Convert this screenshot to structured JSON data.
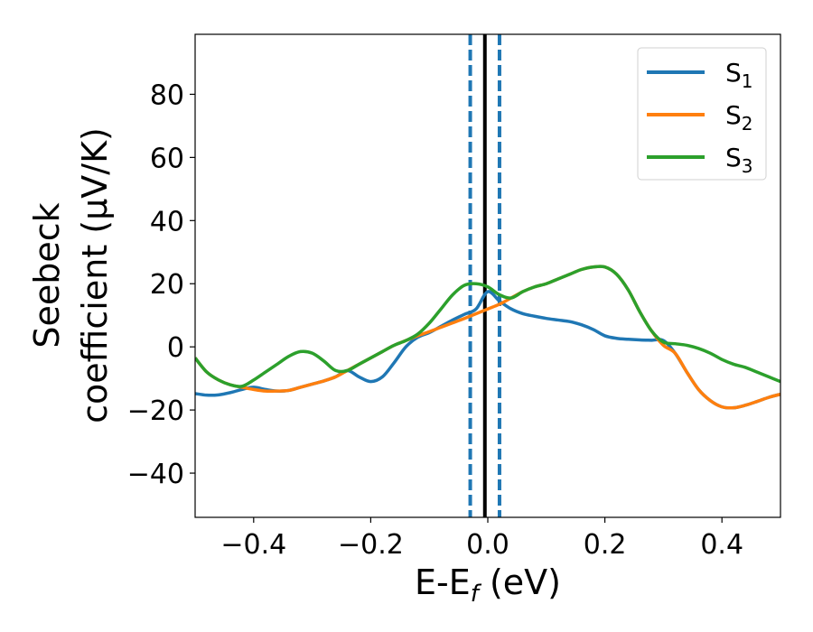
{
  "chart_data": {
    "type": "line",
    "xlabel": "E-E_f (eV)",
    "xlabel_parts": {
      "base": "E-E",
      "sub": "f",
      "rest": " (eV)"
    },
    "ylabel_lines": [
      "Seebeck",
      "coefficient  (μV/K)"
    ],
    "xlim": [
      -0.5,
      0.5
    ],
    "ylim": [
      -54,
      99
    ],
    "xticks": [
      -0.4,
      -0.2,
      0.0,
      0.2,
      0.4
    ],
    "xtick_labels": [
      "−0.4",
      "−0.2",
      "0.0",
      "0.2",
      "0.4"
    ],
    "yticks": [
      -40,
      -20,
      0,
      20,
      40,
      60,
      80
    ],
    "ytick_labels": [
      "−40",
      "−20",
      "0",
      "20",
      "40",
      "60",
      "80"
    ],
    "grid": false,
    "legend_position": "top-right",
    "vlines": [
      {
        "x": -0.03,
        "style": "dashed",
        "color": "#1f77b4"
      },
      {
        "x": 0.02,
        "style": "dashed",
        "color": "#1f77b4"
      },
      {
        "x": -0.005,
        "style": "solid",
        "color": "#000000"
      }
    ],
    "series": [
      {
        "name": "S",
        "sub": "1",
        "color": "#1f77b4",
        "x": [
          -0.5,
          -0.48,
          -0.46,
          -0.44,
          -0.42,
          -0.4,
          -0.38,
          -0.36,
          -0.34,
          -0.32,
          -0.3,
          -0.28,
          -0.26,
          -0.24,
          -0.22,
          -0.2,
          -0.18,
          -0.16,
          -0.14,
          -0.12,
          -0.1,
          -0.08,
          -0.06,
          -0.04,
          -0.02,
          0.0,
          0.02,
          0.04,
          0.06,
          0.08,
          0.1,
          0.12,
          0.14,
          0.16,
          0.18,
          0.2,
          0.22,
          0.24,
          0.26,
          0.28,
          0.3,
          0.32,
          0.34,
          0.36,
          0.38,
          0.4,
          0.42,
          0.44,
          0.46,
          0.48,
          0.5
        ],
        "y": [
          -14.8,
          -15.3,
          -15.2,
          -14.5,
          -13.5,
          -12.8,
          -13.5,
          -14.0,
          -13.8,
          -12.8,
          -11.8,
          -10.8,
          -9.5,
          -7.5,
          -9.5,
          -11.0,
          -9.5,
          -5.0,
          0.0,
          3.0,
          4.5,
          6.5,
          8.5,
          10.3,
          12.0,
          17.5,
          14.5,
          12.0,
          10.5,
          9.7,
          9.0,
          8.5,
          8.0,
          7.0,
          5.5,
          3.5,
          2.7,
          2.4,
          2.2,
          2.1,
          2.0,
          -2.0,
          -8.0,
          -13.5,
          -17.0,
          -19.0,
          -19.3,
          -18.5,
          -17.3,
          -16.0,
          -15.0
        ]
      },
      {
        "name": "S",
        "sub": "2",
        "color": "#ff7f0e",
        "x": [
          -0.5,
          -0.48,
          -0.46,
          -0.44,
          -0.42,
          -0.4,
          -0.38,
          -0.36,
          -0.34,
          -0.32,
          -0.3,
          -0.28,
          -0.26,
          -0.24,
          -0.22,
          -0.2,
          -0.18,
          -0.16,
          -0.14,
          -0.12,
          -0.1,
          -0.08,
          -0.06,
          -0.04,
          -0.02,
          0.0,
          0.02,
          0.04,
          0.06,
          0.08,
          0.1,
          0.12,
          0.14,
          0.16,
          0.18,
          0.2,
          0.22,
          0.24,
          0.26,
          0.28,
          0.3,
          0.32,
          0.34,
          0.36,
          0.38,
          0.4,
          0.42,
          0.44,
          0.46,
          0.48,
          0.5
        ],
        "y": [
          -3.5,
          -8.0,
          -10.5,
          -12.0,
          -12.8,
          -13.5,
          -14.0,
          -14.0,
          -13.8,
          -12.8,
          -11.8,
          -10.8,
          -9.5,
          -7.5,
          -5.5,
          -3.5,
          -1.5,
          0.5,
          2.0,
          3.5,
          4.8,
          6.2,
          7.6,
          9.0,
          10.5,
          12.0,
          13.5,
          15.5,
          17.5,
          19.0,
          20.0,
          21.5,
          23.0,
          24.5,
          25.3,
          25.3,
          23.0,
          18.0,
          11.0,
          5.0,
          0.5,
          -2.0,
          -8.0,
          -13.5,
          -17.0,
          -19.0,
          -19.3,
          -18.5,
          -17.3,
          -16.0,
          -15.0
        ]
      },
      {
        "name": "S",
        "sub": "3",
        "color": "#2ca02c",
        "x": [
          -0.5,
          -0.48,
          -0.46,
          -0.44,
          -0.42,
          -0.4,
          -0.38,
          -0.36,
          -0.34,
          -0.32,
          -0.3,
          -0.28,
          -0.26,
          -0.24,
          -0.22,
          -0.2,
          -0.18,
          -0.16,
          -0.14,
          -0.12,
          -0.1,
          -0.08,
          -0.06,
          -0.04,
          -0.02,
          0.0,
          0.02,
          0.04,
          0.06,
          0.08,
          0.1,
          0.12,
          0.14,
          0.16,
          0.18,
          0.2,
          0.22,
          0.24,
          0.26,
          0.28,
          0.3,
          0.32,
          0.34,
          0.36,
          0.38,
          0.4,
          0.42,
          0.44,
          0.46,
          0.48,
          0.5
        ],
        "y": [
          -3.5,
          -8.0,
          -10.5,
          -12.0,
          -12.5,
          -10.5,
          -8.0,
          -5.5,
          -3.0,
          -1.5,
          -2.0,
          -4.5,
          -7.5,
          -7.5,
          -5.5,
          -3.5,
          -1.5,
          0.5,
          2.0,
          4.0,
          7.5,
          12.0,
          16.5,
          19.5,
          20.0,
          19.0,
          16.5,
          15.5,
          17.5,
          19.0,
          20.0,
          21.5,
          23.0,
          24.5,
          25.3,
          25.3,
          23.0,
          18.0,
          11.0,
          5.0,
          1.5,
          1.0,
          0.5,
          -0.5,
          -2.0,
          -4.0,
          -5.5,
          -6.5,
          -8.0,
          -9.5,
          -11.0
        ]
      }
    ]
  }
}
